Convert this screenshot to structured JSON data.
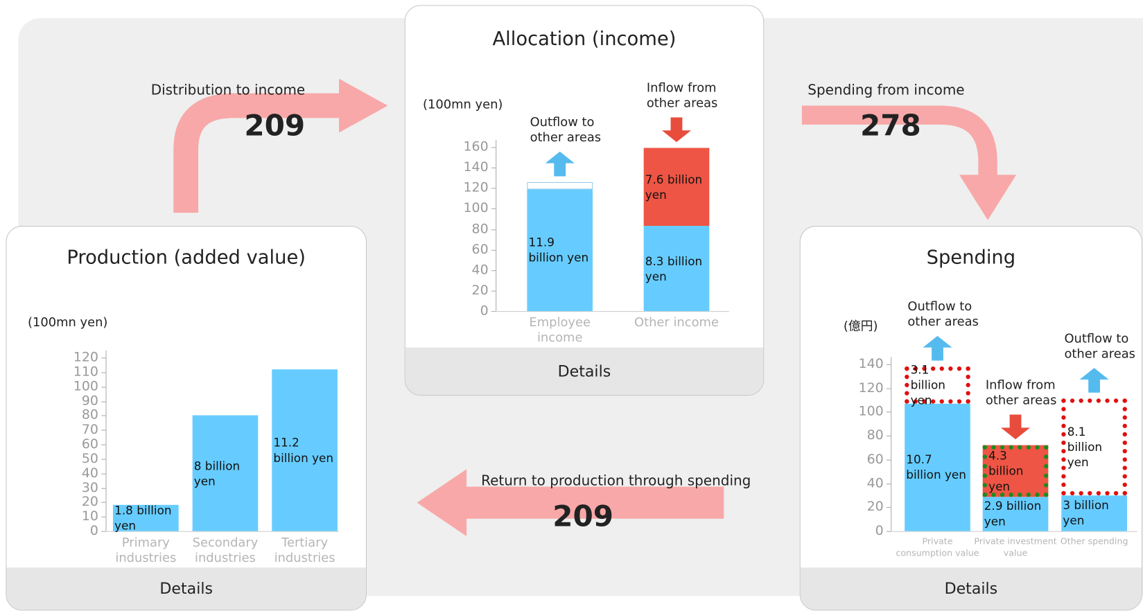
{
  "chart_data": [
    {
      "type": "bar",
      "title": "Production (added value)",
      "y_label": "(100mn yen)",
      "categories": [
        "Primary industries",
        "Secondary industries",
        "Tertiary industries"
      ],
      "values": [
        18,
        80,
        112
      ],
      "value_labels": [
        "1.8 billion yen",
        "8 billion yen",
        "11.2 billion yen"
      ],
      "color": "#66ccff",
      "ylim": [
        0,
        120
      ],
      "yticks": [
        0,
        10,
        20,
        30,
        40,
        50,
        60,
        70,
        80,
        90,
        100,
        110,
        120
      ],
      "button": "Details"
    },
    {
      "type": "stacked_bar",
      "title": "Allocation (income)",
      "y_label": "(100mn yen)",
      "categories": [
        "Employee income",
        "Other income"
      ],
      "series": [
        {
          "color": "#66ccff",
          "values": [
            119,
            83
          ],
          "value_labels": [
            "11.9 billion yen",
            "8.3 billion yen"
          ]
        },
        {
          "color": "#ffffff",
          "values": [
            7,
            null
          ],
          "annotations": [
            "Outflow to other areas",
            null
          ],
          "arrow": "up",
          "arrow_color": "#55bbee"
        },
        {
          "color": "#ee5544",
          "values": [
            null,
            76
          ],
          "value_labels": [
            null,
            "7.6 billion yen"
          ],
          "annotations": [
            null,
            "Inflow from other areas"
          ],
          "arrow": "down",
          "arrow_color": "#e84c3d"
        }
      ],
      "ylim": [
        0,
        160
      ],
      "yticks": [
        0,
        20,
        40,
        60,
        80,
        100,
        120,
        140,
        160
      ],
      "button": "Details"
    },
    {
      "type": "stacked_bar",
      "title": "Spending",
      "y_label": "(億円)",
      "categories": [
        "Private consumption value",
        "Private investment value",
        "Other spending"
      ],
      "series": [
        {
          "color": "#66ccff",
          "values": [
            107,
            29,
            30
          ],
          "value_labels": [
            "10.7 billion yen",
            "2.9 billion yen",
            "3 billion yen"
          ]
        },
        {
          "color": "#ee5544",
          "values": [
            null,
            43,
            null
          ],
          "value_labels": [
            null,
            "4.3 billion yen",
            null
          ],
          "annotations": [
            null,
            "Inflow from other areas",
            null
          ],
          "arrow": "down",
          "arrow_color": "#e84c3d",
          "outline": "#1d8a1d"
        },
        {
          "color": "#ffffff",
          "values": [
            31,
            null,
            81
          ],
          "value_labels": [
            "3.1 billion yen",
            null,
            "8.1 billion yen"
          ],
          "annotations": [
            "Outflow to other areas",
            null,
            "Outflow to other areas"
          ],
          "arrow": "up",
          "arrow_color": "#55bbee",
          "outline": "#e01010"
        }
      ],
      "ylim": [
        0,
        140
      ],
      "yticks": [
        0,
        20,
        40,
        60,
        80,
        100,
        120,
        140
      ],
      "button": "Details"
    }
  ],
  "flows": [
    {
      "label": "Distribution to income",
      "value": 209
    },
    {
      "label": "Spending from income",
      "value": 278
    },
    {
      "label": "Return to production through spending",
      "value": 209
    }
  ]
}
